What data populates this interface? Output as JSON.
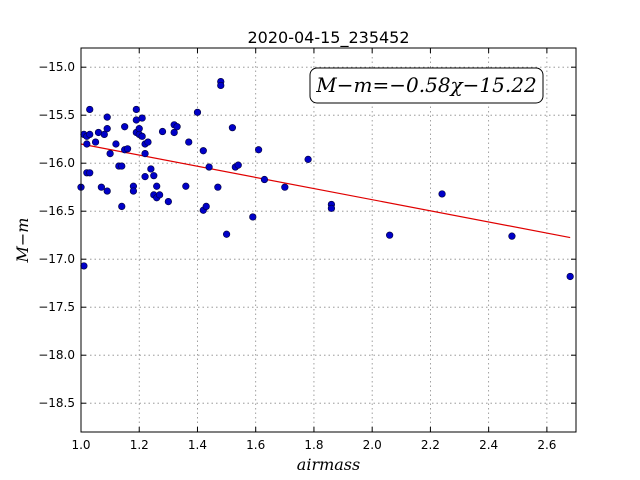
{
  "chart_data": {
    "type": "scatter",
    "title": "2020-04-15_235452",
    "xlabel": "airmass",
    "ylabel": "M−m",
    "xlim": [
      1.0,
      2.7
    ],
    "ylim": [
      -18.8,
      -14.8
    ],
    "x_ticks": [
      1.0,
      1.2,
      1.4,
      1.6,
      1.8,
      2.0,
      2.2,
      2.4,
      2.6
    ],
    "x_tick_labels": [
      "1.0",
      "1.2",
      "1.4",
      "1.6",
      "1.8",
      "2.0",
      "2.2",
      "2.4",
      "2.6"
    ],
    "y_ticks": [
      -15.0,
      -15.5,
      -16.0,
      -16.5,
      -17.0,
      -17.5,
      -18.0,
      -18.5
    ],
    "y_tick_labels": [
      "−15.0",
      "−15.5",
      "−16.0",
      "−16.5",
      "−17.0",
      "−17.5",
      "−18.0",
      "−18.5"
    ],
    "grid": true,
    "annotation": "M−m=−0.58χ−15.22",
    "fit": {
      "slope": -0.58,
      "intercept": -15.22,
      "x_range": [
        1.0,
        2.68
      ],
      "color": "#e00000"
    },
    "point_color": "#0000c8",
    "points": [
      [
        1.0,
        -16.25
      ],
      [
        1.01,
        -17.07
      ],
      [
        1.01,
        -15.7
      ],
      [
        1.02,
        -15.72
      ],
      [
        1.02,
        -15.8
      ],
      [
        1.02,
        -16.1
      ],
      [
        1.03,
        -15.44
      ],
      [
        1.03,
        -15.7
      ],
      [
        1.03,
        -16.1
      ],
      [
        1.05,
        -15.78
      ],
      [
        1.06,
        -15.68
      ],
      [
        1.07,
        -16.25
      ],
      [
        1.08,
        -15.7
      ],
      [
        1.09,
        -16.29
      ],
      [
        1.09,
        -15.52
      ],
      [
        1.09,
        -15.64
      ],
      [
        1.1,
        -15.9
      ],
      [
        1.12,
        -15.8
      ],
      [
        1.13,
        -16.03
      ],
      [
        1.14,
        -16.03
      ],
      [
        1.14,
        -16.45
      ],
      [
        1.15,
        -15.86
      ],
      [
        1.15,
        -15.62
      ],
      [
        1.16,
        -15.85
      ],
      [
        1.18,
        -16.24
      ],
      [
        1.18,
        -16.29
      ],
      [
        1.19,
        -15.68
      ],
      [
        1.19,
        -15.55
      ],
      [
        1.19,
        -15.44
      ],
      [
        1.2,
        -15.7
      ],
      [
        1.2,
        -15.64
      ],
      [
        1.21,
        -15.53
      ],
      [
        1.21,
        -15.72
      ],
      [
        1.22,
        -15.8
      ],
      [
        1.22,
        -15.9
      ],
      [
        1.22,
        -16.14
      ],
      [
        1.23,
        -15.78
      ],
      [
        1.24,
        -16.06
      ],
      [
        1.25,
        -16.13
      ],
      [
        1.25,
        -16.33
      ],
      [
        1.26,
        -16.24
      ],
      [
        1.26,
        -16.36
      ],
      [
        1.27,
        -16.33
      ],
      [
        1.28,
        -15.67
      ],
      [
        1.3,
        -16.4
      ],
      [
        1.32,
        -15.68
      ],
      [
        1.32,
        -15.6
      ],
      [
        1.33,
        -15.62
      ],
      [
        1.36,
        -16.24
      ],
      [
        1.37,
        -15.78
      ],
      [
        1.4,
        -15.47
      ],
      [
        1.42,
        -15.87
      ],
      [
        1.42,
        -16.49
      ],
      [
        1.43,
        -16.45
      ],
      [
        1.44,
        -16.04
      ],
      [
        1.47,
        -16.25
      ],
      [
        1.48,
        -15.15
      ],
      [
        1.48,
        -15.19
      ],
      [
        1.5,
        -16.74
      ],
      [
        1.52,
        -15.63
      ],
      [
        1.53,
        -16.04
      ],
      [
        1.54,
        -16.02
      ],
      [
        1.59,
        -16.56
      ],
      [
        1.61,
        -15.86
      ],
      [
        1.63,
        -16.17
      ],
      [
        1.7,
        -16.25
      ],
      [
        1.78,
        -15.96
      ],
      [
        1.86,
        -16.43
      ],
      [
        1.86,
        -16.47
      ],
      [
        2.06,
        -16.75
      ],
      [
        2.24,
        -16.32
      ],
      [
        2.48,
        -16.76
      ],
      [
        2.68,
        -17.18
      ]
    ]
  }
}
